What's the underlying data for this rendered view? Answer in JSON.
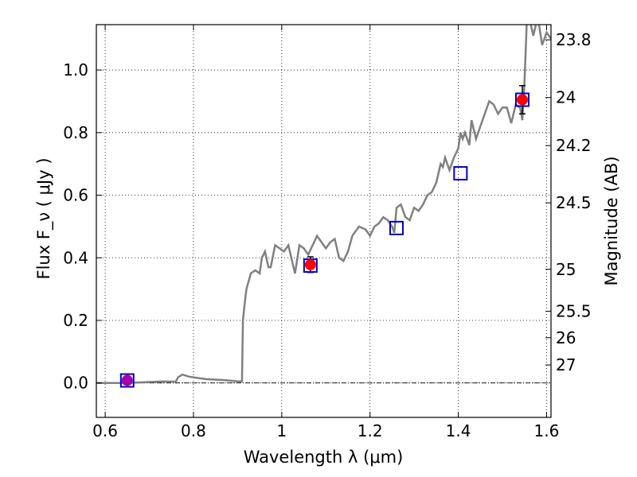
{
  "chart_data": {
    "type": "line",
    "xlabel": "Wavelength  λ (μm)",
    "ylabel": "Flux  F_ν  ( μJy )",
    "ylabel_right": "Magnitude (AB)",
    "xlim": [
      0.58,
      1.61
    ],
    "ylim": [
      -0.11,
      1.145
    ],
    "x_ticks": [
      {
        "value": 0.6,
        "label": "0.6"
      },
      {
        "value": 0.8,
        "label": "0.8"
      },
      {
        "value": 1.0,
        "label": "1"
      },
      {
        "value": 1.2,
        "label": "1.2"
      },
      {
        "value": 1.4,
        "label": "1.4"
      },
      {
        "value": 1.6,
        "label": "1.6"
      }
    ],
    "y_ticks": [
      {
        "value": 0.0,
        "label": "0.0"
      },
      {
        "value": 0.2,
        "label": "0.2"
      },
      {
        "value": 0.4,
        "label": "0.4"
      },
      {
        "value": 0.6,
        "label": "0.6"
      },
      {
        "value": 0.8,
        "label": "0.8"
      },
      {
        "value": 1.0,
        "label": "1.0"
      }
    ],
    "right_ticks": [
      {
        "value": 23.8,
        "label": "23.8"
      },
      {
        "value": 24.0,
        "label": "24"
      },
      {
        "value": 24.2,
        "label": "24.2"
      },
      {
        "value": 24.5,
        "label": "24.5"
      },
      {
        "value": 25.0,
        "label": "25"
      },
      {
        "value": 25.5,
        "label": "25.5"
      },
      {
        "value": 26.0,
        "label": "26"
      },
      {
        "value": 27.0,
        "label": "27"
      }
    ],
    "grid": true,
    "zero_line": true,
    "model_sed": {
      "color": "#808080",
      "x": [
        0.58,
        0.6,
        0.65,
        0.7,
        0.73,
        0.76,
        0.765,
        0.775,
        0.79,
        0.8,
        0.83,
        0.86,
        0.88,
        0.9,
        0.91,
        0.912,
        0.915,
        0.92,
        0.93,
        0.94,
        0.95,
        0.955,
        0.962,
        0.97,
        0.975,
        0.985,
        0.995,
        1.005,
        1.015,
        1.025,
        1.03,
        1.04,
        1.05,
        1.06,
        1.07,
        1.08,
        1.09,
        1.1,
        1.11,
        1.12,
        1.13,
        1.14,
        1.15,
        1.16,
        1.175,
        1.19,
        1.2,
        1.21,
        1.22,
        1.23,
        1.24,
        1.25,
        1.255,
        1.26,
        1.27,
        1.28,
        1.29,
        1.3,
        1.31,
        1.32,
        1.33,
        1.34,
        1.35,
        1.36,
        1.365,
        1.37,
        1.38,
        1.39,
        1.4,
        1.405,
        1.41,
        1.415,
        1.42,
        1.425,
        1.43,
        1.44,
        1.45,
        1.46,
        1.47,
        1.48,
        1.49,
        1.5,
        1.51,
        1.52,
        1.53,
        1.54,
        1.545,
        1.55,
        1.555,
        1.56,
        1.565,
        1.57,
        1.58,
        1.59,
        1.6,
        1.61
      ],
      "y": [
        0.0,
        0.0,
        0.0,
        0.003,
        0.005,
        0.004,
        0.018,
        0.027,
        0.02,
        0.018,
        0.012,
        0.01,
        0.008,
        0.005,
        0.005,
        0.2,
        0.24,
        0.3,
        0.35,
        0.36,
        0.35,
        0.4,
        0.42,
        0.37,
        0.37,
        0.44,
        0.43,
        0.42,
        0.44,
        0.38,
        0.35,
        0.44,
        0.43,
        0.41,
        0.44,
        0.47,
        0.45,
        0.43,
        0.45,
        0.46,
        0.4,
        0.39,
        0.42,
        0.47,
        0.5,
        0.49,
        0.47,
        0.5,
        0.51,
        0.53,
        0.52,
        0.5,
        0.48,
        0.56,
        0.57,
        0.53,
        0.52,
        0.56,
        0.55,
        0.57,
        0.6,
        0.61,
        0.64,
        0.7,
        0.69,
        0.72,
        0.68,
        0.72,
        0.75,
        0.8,
        0.78,
        0.8,
        0.78,
        0.76,
        0.84,
        0.78,
        0.82,
        0.86,
        0.9,
        0.89,
        0.86,
        0.88,
        0.88,
        0.83,
        0.89,
        0.88,
        0.84,
        0.96,
        1.15,
        1.17,
        1.14,
        1.11,
        1.17,
        1.08,
        1.12,
        1.1
      ]
    },
    "model_points": {
      "color": "#0000cc",
      "x": [
        0.65,
        1.065,
        1.26,
        1.405,
        1.545
      ],
      "y": [
        0.008,
        0.375,
        0.495,
        0.67,
        0.905
      ]
    },
    "observed": {
      "color": "#ff0000",
      "x": [
        0.65,
        1.065,
        1.545
      ],
      "y": [
        0.008,
        0.378,
        0.905
      ],
      "yerr": [
        0.008,
        0.025,
        0.045
      ]
    },
    "first_point_color": "#aa00aa"
  }
}
